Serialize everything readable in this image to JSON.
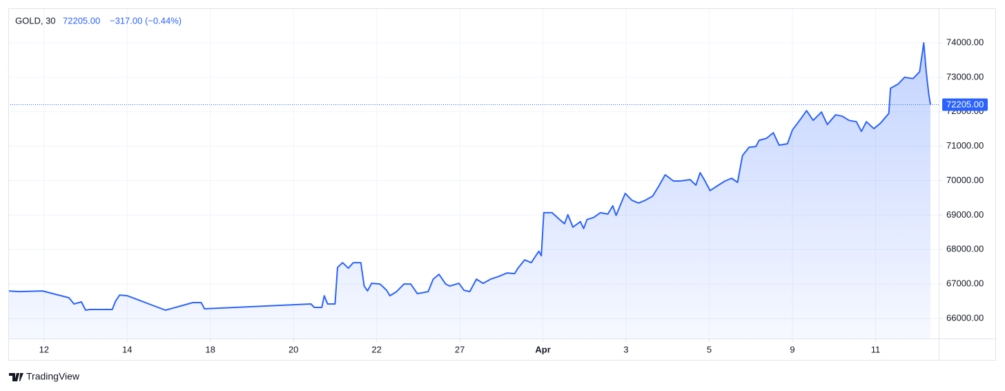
{
  "header": {
    "symbol": "GOLD, 30",
    "price": "72205.00",
    "change": "−317.00 (−0.44%)"
  },
  "branding": "TradingView",
  "chart_data": {
    "type": "area",
    "x": [
      0.57,
      0.7,
      0.98,
      1.3,
      1.36,
      1.45,
      1.5,
      1.55,
      1.82,
      1.86,
      1.91,
      2.0,
      2.46,
      2.79,
      2.89,
      2.93,
      4.21,
      4.25,
      4.34,
      4.37,
      4.41,
      4.5,
      4.53,
      4.59,
      4.66,
      4.72,
      4.81,
      4.85,
      4.89,
      4.94,
      5.04,
      5.12,
      5.16,
      5.24,
      5.33,
      5.41,
      5.49,
      5.62,
      5.68,
      5.75,
      5.83,
      5.88,
      5.99,
      6.05,
      6.12,
      6.2,
      6.28,
      6.37,
      6.47,
      6.57,
      6.66,
      6.7,
      6.78,
      6.86,
      6.95,
      6.98,
      7.01,
      7.11,
      7.2,
      7.26,
      7.3,
      7.36,
      7.45,
      7.49,
      7.53,
      7.61,
      7.69,
      7.78,
      7.84,
      7.88,
      7.99,
      8.07,
      8.15,
      8.23,
      8.32,
      8.4,
      8.47,
      8.57,
      8.65,
      8.77,
      8.84,
      8.89,
      8.94,
      9.01,
      9.11,
      9.19,
      9.27,
      9.34,
      9.4,
      9.48,
      9.56,
      9.6,
      9.69,
      9.77,
      9.84,
      9.94,
      10.0,
      10.1,
      10.17,
      10.25,
      10.35,
      10.42,
      10.52,
      10.6,
      10.68,
      10.77,
      10.83,
      10.89,
      10.98,
      11.06,
      11.16,
      11.18,
      11.27,
      11.35,
      11.45,
      11.53,
      11.58,
      11.61,
      11.64,
      11.66
    ],
    "series": [
      {
        "color": "#2962ff",
        "values": [
          66800,
          66780,
          66800,
          66600,
          66420,
          66480,
          66240,
          66260,
          66260,
          66500,
          66680,
          66660,
          66240,
          66460,
          66460,
          66280,
          66420,
          66320,
          66320,
          66660,
          66420,
          66420,
          67480,
          67620,
          67460,
          67620,
          67620,
          66940,
          66800,
          67020,
          67000,
          66820,
          66660,
          66780,
          67000,
          67000,
          66720,
          66780,
          67140,
          67280,
          67000,
          66940,
          67020,
          66820,
          66780,
          67140,
          67020,
          67140,
          67220,
          67320,
          67300,
          67460,
          67700,
          67620,
          67950,
          67820,
          69070,
          69070,
          68870,
          68750,
          69010,
          68650,
          68810,
          68610,
          68870,
          68930,
          69070,
          69030,
          69270,
          68990,
          69630,
          69430,
          69350,
          69430,
          69550,
          69870,
          70170,
          69990,
          69990,
          70030,
          69870,
          70230,
          70030,
          69710,
          69870,
          69990,
          70070,
          69950,
          70730,
          70970,
          70990,
          71170,
          71230,
          71390,
          71030,
          71070,
          71470,
          71790,
          72030,
          71750,
          71990,
          71630,
          71910,
          71870,
          71750,
          71710,
          71430,
          71710,
          71510,
          71670,
          71950,
          72680,
          72800,
          73000,
          72960,
          73160,
          74000,
          73160,
          72520,
          72205
        ]
      }
    ],
    "xlim": [
      0.57,
      11.76
    ],
    "xticks": [
      {
        "value": 1,
        "label": "12"
      },
      {
        "value": 2,
        "label": "14"
      },
      {
        "value": 3,
        "label": "18"
      },
      {
        "value": 4,
        "label": "20"
      },
      {
        "value": 5,
        "label": "22"
      },
      {
        "value": 6,
        "label": "27"
      },
      {
        "value": 7,
        "label": "Apr"
      },
      {
        "value": 8,
        "label": "3"
      },
      {
        "value": 9,
        "label": "5"
      },
      {
        "value": 10,
        "label": "9"
      },
      {
        "value": 11,
        "label": "11"
      }
    ],
    "ylim": [
      65418,
      75002
    ],
    "yticks": [
      {
        "value": 66000,
        "label": "66000.00"
      },
      {
        "value": 67000,
        "label": "67000.00"
      },
      {
        "value": 68000,
        "label": "68000.00"
      },
      {
        "value": 69000,
        "label": "69000.00"
      },
      {
        "value": 70000,
        "label": "70000.00"
      },
      {
        "value": 71000,
        "label": "71000.00"
      },
      {
        "value": 72000,
        "label": "72000.00"
      },
      {
        "value": 73000,
        "label": "73000.00"
      },
      {
        "value": 74000,
        "label": "74000.00"
      }
    ],
    "grid": true
  }
}
